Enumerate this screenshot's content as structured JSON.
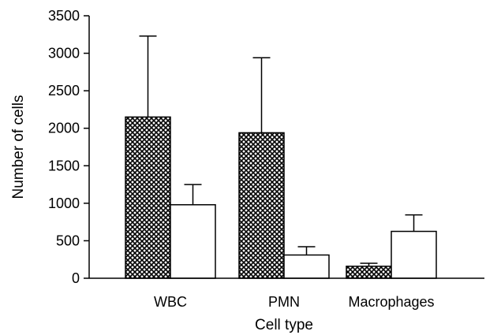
{
  "chart_data": {
    "type": "bar",
    "title": "",
    "xlabel": "Cell type",
    "ylabel": "Number of cells",
    "ylim": [
      0,
      3500
    ],
    "yticks": [
      0,
      500,
      1000,
      1500,
      2000,
      2500,
      3000,
      3500
    ],
    "categories": [
      "WBC",
      "PMN",
      "Macrophages"
    ],
    "grid": false,
    "legend": "none",
    "series": [
      {
        "values": [
          2150,
          1940,
          160
        ],
        "errors": [
          1080,
          1000,
          40
        ],
        "fill": "crosshatch",
        "color": "#000000"
      },
      {
        "values": [
          980,
          310,
          625
        ],
        "errors": [
          270,
          110,
          220
        ],
        "fill": "none",
        "color": "#ffffff"
      }
    ]
  }
}
